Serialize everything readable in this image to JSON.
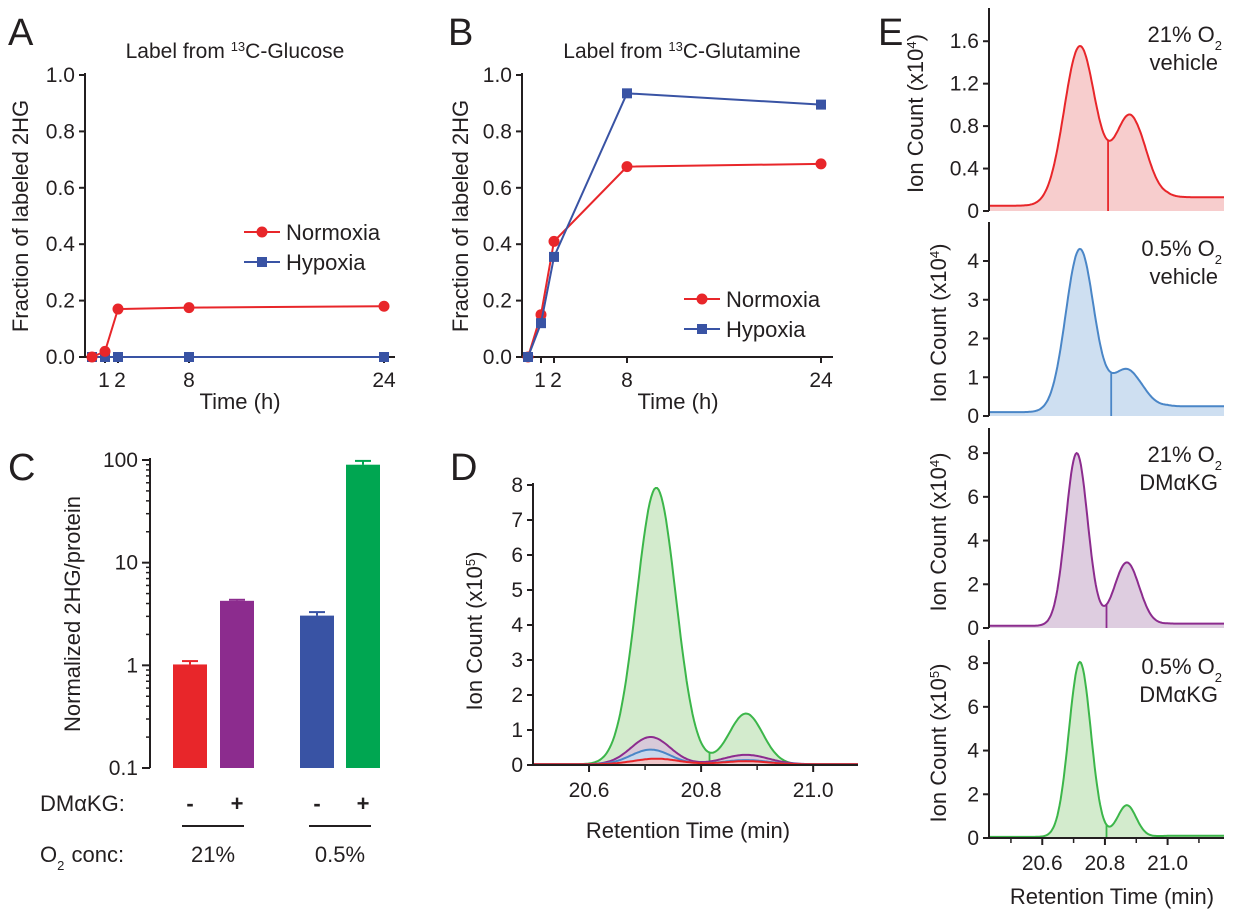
{
  "chart_data": [
    {
      "panel": "A",
      "type": "line",
      "title": "Label from ¹³C-Glucose",
      "xlabel": "Time (h)",
      "ylabel": "Fraction of labeled 2HG",
      "ylim": [
        0,
        1.0
      ],
      "x_tick_labels": [
        "1",
        "2",
        "8",
        "24"
      ],
      "y_tick_labels": [
        "0.0",
        "0.2",
        "0.4",
        "0.6",
        "0.8",
        "1.0"
      ],
      "legend_position": "center-right",
      "series": [
        {
          "name": "Normoxia",
          "color": "#e8262a",
          "marker": "circle",
          "x": [
            0,
            1,
            2,
            8,
            24
          ],
          "y": [
            0.0,
            0.02,
            0.17,
            0.175,
            0.18
          ]
        },
        {
          "name": "Hypoxia",
          "color": "#3953a4",
          "marker": "square",
          "x": [
            0,
            1,
            2,
            8,
            24
          ],
          "y": [
            0.0,
            0.0,
            0.0,
            0.0,
            0.0
          ]
        }
      ]
    },
    {
      "panel": "B",
      "type": "line",
      "title": "Label from ¹³C-Glutamine",
      "xlabel": "Time (h)",
      "ylabel": "Fraction of labeled 2HG",
      "ylim": [
        0,
        1.0
      ],
      "x_tick_labels": [
        "1",
        "2",
        "8",
        "24"
      ],
      "y_tick_labels": [
        "0.0",
        "0.2",
        "0.4",
        "0.6",
        "0.8",
        "1.0"
      ],
      "legend_position": "bottom-right",
      "series": [
        {
          "name": "Normoxia",
          "color": "#e8262a",
          "marker": "circle",
          "x": [
            0,
            1,
            2,
            8,
            24
          ],
          "y": [
            0.0,
            0.15,
            0.41,
            0.675,
            0.685
          ]
        },
        {
          "name": "Hypoxia",
          "color": "#3953a4",
          "marker": "square",
          "x": [
            0,
            1,
            2,
            8,
            24
          ],
          "y": [
            0.0,
            0.12,
            0.355,
            0.935,
            0.895
          ]
        }
      ]
    },
    {
      "panel": "C",
      "type": "bar",
      "ylabel": "Normalized 2HG/protein",
      "yscale": "log",
      "ylim": [
        0.1,
        100
      ],
      "y_tick_labels": [
        "0.1",
        "1",
        "10",
        "100"
      ],
      "row1_label": "DMαKG:",
      "row2_label_main": "O",
      "row2_label_sub": "2",
      "row2_label_rest": " conc:",
      "bars": [
        {
          "value": 1.02,
          "error": 0.08,
          "color": "#e8262a",
          "dmakg": "-",
          "group": "21%"
        },
        {
          "value": 4.25,
          "error": 0.1,
          "color": "#8c2c8e",
          "dmakg": "+",
          "group": "21%"
        },
        {
          "value": 3.05,
          "error": 0.25,
          "color": "#3953a4",
          "dmakg": "-",
          "group": "0.5%"
        },
        {
          "value": 90,
          "error": 8,
          "color": "#00a651",
          "dmakg": "+",
          "group": "0.5%"
        }
      ],
      "groups": [
        "21%",
        "0.5%"
      ]
    },
    {
      "panel": "D",
      "type": "area",
      "xlabel": "Retention Time (min)",
      "ylabel_main": "Ion Count (x10",
      "ylabel_exp": "5",
      "ylabel_end": ")",
      "xlim": [
        20.5,
        21.08
      ],
      "ylim": [
        0,
        8
      ],
      "x_tick_labels": [
        "20.6",
        "20.8",
        "21.0"
      ],
      "y_tick_labels": [
        "0",
        "1",
        "2",
        "3",
        "4",
        "5",
        "6",
        "7",
        "8"
      ],
      "series": [
        {
          "color": "#3cb64a",
          "fill": "#cbe8c4",
          "peaks": [
            [
              20.72,
              7.9,
              0.035
            ],
            [
              20.88,
              1.45,
              0.03
            ]
          ],
          "split": 20.815
        },
        {
          "color": "#8c2c8e",
          "fill": "#d8c4da",
          "peaks": [
            [
              20.71,
              0.78,
              0.035
            ],
            [
              20.88,
              0.27,
              0.04
            ]
          ],
          "split": 20.81
        },
        {
          "color": "#4a86c7",
          "fill": "#c6d9ee",
          "peaks": [
            [
              20.71,
              0.42,
              0.035
            ],
            [
              20.88,
              0.12,
              0.04
            ]
          ],
          "split": 20.81
        },
        {
          "color": "#e8262a",
          "fill": "#f6c4c4",
          "peaks": [
            [
              20.72,
              0.16,
              0.04
            ],
            [
              20.88,
              0.09,
              0.04
            ]
          ],
          "split": 20.815
        }
      ]
    },
    {
      "panel": "E",
      "type": "area",
      "xlabel": "Retention Time (min)",
      "xlim": [
        20.43,
        21.18
      ],
      "x_tick_labels": [
        "20.6",
        "20.8",
        "21.0"
      ],
      "traces": [
        {
          "label1_main": "21% O",
          "label1_sub": "2",
          "label2": "vehicle",
          "ylabel_main": "Ion Count (x10",
          "ylabel_exp": "4",
          "ylabel_end": ")",
          "ylim": [
            0,
            1.8
          ],
          "y_tick_labels": [
            "0",
            "0.4",
            "0.8",
            "1.2",
            "1.6"
          ],
          "color": "#e8262a",
          "fill": "#f6c4c4",
          "baseline": 0.05,
          "tail": 0.08,
          "peaks": [
            [
              20.72,
              1.5,
              0.05
            ],
            [
              20.88,
              0.85,
              0.05
            ]
          ],
          "split": 20.81
        },
        {
          "label1_main": "0.5% O",
          "label1_sub": "2",
          "label2": "vehicle",
          "ylabel_main": "Ion Count (x10",
          "ylabel_exp": "4",
          "ylabel_end": ")",
          "ylim": [
            0,
            4.8
          ],
          "y_tick_labels": [
            "0",
            "1",
            "2",
            "3",
            "4"
          ],
          "color": "#4a86c7",
          "fill": "#c6d9ee",
          "baseline": 0.1,
          "tail": 0.15,
          "peaks": [
            [
              20.72,
              4.2,
              0.045
            ],
            [
              20.87,
              1.1,
              0.05
            ]
          ],
          "split": 20.82
        },
        {
          "label1_main": "21% O",
          "label1_sub": "2",
          "label2": "DMαKG",
          "ylabel_main": "Ion Count (x10",
          "ylabel_exp": "4",
          "ylabel_end": ")",
          "ylim": [
            0,
            8.6
          ],
          "y_tick_labels": [
            "0",
            "2",
            "4",
            "6",
            "8"
          ],
          "color": "#8c2c8e",
          "fill": "#d8c4da",
          "baseline": 0.1,
          "tail": 0.1,
          "peaks": [
            [
              20.71,
              7.9,
              0.035
            ],
            [
              20.87,
              2.9,
              0.04
            ]
          ],
          "split": 20.805
        },
        {
          "label1_main": "0.5% O",
          "label1_sub": "2",
          "label2": "DMαKG",
          "ylabel_main": "Ion Count (x10",
          "ylabel_exp": "5",
          "ylabel_end": ")",
          "ylim": [
            0,
            8.6
          ],
          "y_tick_labels": [
            "0",
            "2",
            "4",
            "6",
            "8"
          ],
          "color": "#3cb64a",
          "fill": "#cbe8c4",
          "baseline": 0.05,
          "tail": 0.05,
          "peaks": [
            [
              20.72,
              8.0,
              0.035
            ],
            [
              20.87,
              1.45,
              0.03
            ]
          ],
          "split": 20.805
        }
      ]
    }
  ]
}
